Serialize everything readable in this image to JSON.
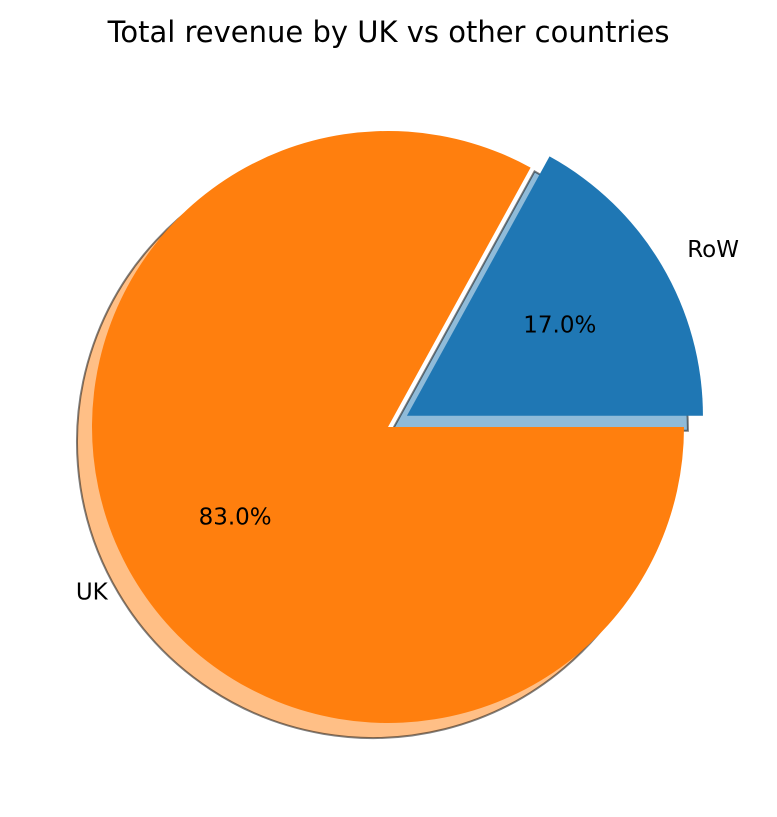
{
  "chart_data": {
    "type": "pie",
    "title": "Total revenue by UK vs other countries",
    "slices": [
      {
        "label": "RoW",
        "value": 17.0,
        "pct_label": "17.0%",
        "color": "#1f77b4",
        "explode": true
      },
      {
        "label": "UK",
        "value": 83.0,
        "pct_label": "83.0%",
        "color": "#ff7f0e",
        "explode": false
      }
    ],
    "start_angle_deg": 0,
    "direction": "counterclockwise",
    "shadow": true,
    "legend": "none"
  }
}
